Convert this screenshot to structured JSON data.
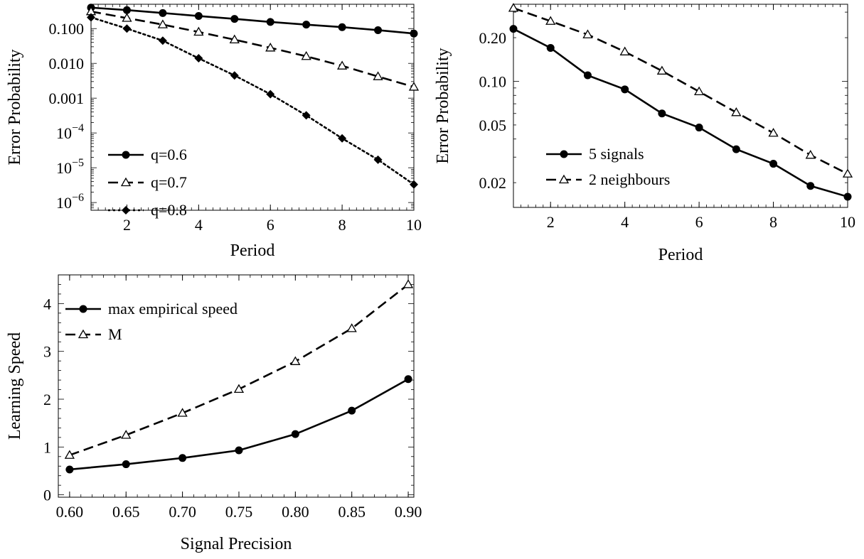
{
  "chart_data": [
    {
      "type": "line",
      "xlabel": "Period",
      "ylabel": "Error Probability",
      "y_scale": "log",
      "xlim": [
        1,
        10
      ],
      "ylim": [
        6e-07,
        0.5
      ],
      "x_ticks": [
        2,
        4,
        6,
        8,
        10
      ],
      "x_tick_labels": [
        "2",
        "4",
        "6",
        "8",
        "10"
      ],
      "y_ticks": [
        1e-06,
        1e-05,
        0.0001,
        0.001,
        0.01,
        0.1
      ],
      "y_tick_labels": [
        {
          "base": "10",
          "exp": "−6"
        },
        {
          "base": "10",
          "exp": "−5"
        },
        {
          "base": "10",
          "exp": "−4"
        },
        {
          "base": "0.001",
          "exp": ""
        },
        {
          "base": "0.010",
          "exp": ""
        },
        {
          "base": "0.100",
          "exp": ""
        }
      ],
      "legend_position": "bottom-left",
      "x": [
        1,
        2,
        3,
        4,
        5,
        6,
        7,
        8,
        9,
        10
      ],
      "series": [
        {
          "name": "q=0.6",
          "marker": "circle",
          "dash": "solid",
          "values": [
            0.4,
            0.34,
            0.28,
            0.23,
            0.19,
            0.155,
            0.13,
            0.11,
            0.09,
            0.072
          ]
        },
        {
          "name": "q=0.7",
          "marker": "triangle",
          "dash": "dashed",
          "values": [
            0.31,
            0.2,
            0.13,
            0.08,
            0.048,
            0.028,
            0.016,
            0.0085,
            0.0042,
            0.0021
          ]
        },
        {
          "name": "q=0.8",
          "marker": "diamond",
          "dash": "dotted",
          "values": [
            0.21,
            0.1,
            0.045,
            0.014,
            0.0045,
            0.0013,
            0.00032,
            7e-05,
            1.7e-05,
            3.3e-06
          ]
        }
      ]
    },
    {
      "type": "line",
      "xlabel": "Period",
      "ylabel": "Error Probability",
      "y_scale": "log",
      "xlim": [
        1,
        10
      ],
      "ylim": [
        0.0135,
        0.34
      ],
      "x_ticks": [
        2,
        4,
        6,
        8,
        10
      ],
      "x_tick_labels": [
        "2",
        "4",
        "6",
        "8",
        "10"
      ],
      "y_ticks": [
        0.02,
        0.05,
        0.1,
        0.2
      ],
      "y_tick_labels": [
        {
          "base": "0.02",
          "exp": ""
        },
        {
          "base": "0.05",
          "exp": ""
        },
        {
          "base": "0.10",
          "exp": ""
        },
        {
          "base": "0.20",
          "exp": ""
        }
      ],
      "legend_position": "bottom-left",
      "x": [
        1,
        2,
        3,
        4,
        5,
        6,
        7,
        8,
        9,
        10
      ],
      "series": [
        {
          "name": "5 signals",
          "marker": "circle",
          "dash": "solid",
          "values": [
            0.23,
            0.17,
            0.11,
            0.088,
            0.06,
            0.048,
            0.034,
            0.027,
            0.019,
            0.016
          ]
        },
        {
          "name": "2 neighbours",
          "marker": "triangle",
          "dash": "dashed",
          "values": [
            0.32,
            0.26,
            0.21,
            0.16,
            0.118,
            0.085,
            0.061,
            0.044,
            0.031,
            0.023
          ]
        }
      ]
    },
    {
      "type": "line",
      "xlabel": "Signal Precision",
      "ylabel": "Learning Speed",
      "y_scale": "linear",
      "xlim": [
        0.59,
        0.905
      ],
      "ylim": [
        -0.05,
        4.6
      ],
      "x_ticks": [
        0.6,
        0.65,
        0.7,
        0.75,
        0.8,
        0.85,
        0.9
      ],
      "x_tick_labels": [
        "0.60",
        "0.65",
        "0.70",
        "0.75",
        "0.80",
        "0.85",
        "0.90"
      ],
      "y_ticks": [
        0,
        1,
        2,
        3,
        4
      ],
      "y_tick_labels": [
        {
          "base": "0",
          "exp": ""
        },
        {
          "base": "1",
          "exp": ""
        },
        {
          "base": "2",
          "exp": ""
        },
        {
          "base": "3",
          "exp": ""
        },
        {
          "base": "4",
          "exp": ""
        }
      ],
      "legend_position": "top-left",
      "x": [
        0.6,
        0.65,
        0.7,
        0.75,
        0.8,
        0.85,
        0.9
      ],
      "series": [
        {
          "name": "max empirical speed",
          "marker": "circle",
          "dash": "solid",
          "values": [
            0.53,
            0.64,
            0.77,
            0.93,
            1.27,
            1.76,
            2.42
          ]
        },
        {
          "name": "M",
          "marker": "triangle",
          "dash": "dashed",
          "values": [
            0.83,
            1.25,
            1.71,
            2.21,
            2.79,
            3.48,
            4.4
          ]
        }
      ]
    }
  ]
}
